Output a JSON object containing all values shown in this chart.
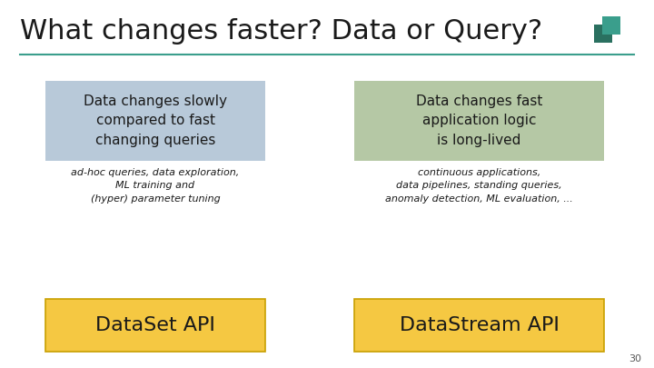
{
  "title": "What changes faster? Data or Query?",
  "title_fontsize": 22,
  "title_color": "#1a1a1a",
  "background_color": "#ffffff",
  "line_color": "#3a9e8c",
  "left_box_color": "#b8c9d9",
  "right_box_color": "#b5c8a5",
  "yellow_box_color": "#f5c842",
  "yellow_border_color": "#c8a000",
  "left_box_text": "Data changes slowly\ncompared to fast\nchanging queries",
  "right_box_text": "Data changes fast\napplication logic\nis long-lived",
  "left_italic_text": "ad-hoc queries, data exploration,\nML training and\n(hyper) parameter tuning",
  "right_italic_text": "continuous applications,\ndata pipelines, standing queries,\nanomaly detection, ML evaluation, ...",
  "left_api_text": "DataSet API",
  "right_api_text": "DataStream API",
  "page_number": "30",
  "teal_icon_color": "#3a9e8c",
  "teal_icon_dark": "#2a7060"
}
